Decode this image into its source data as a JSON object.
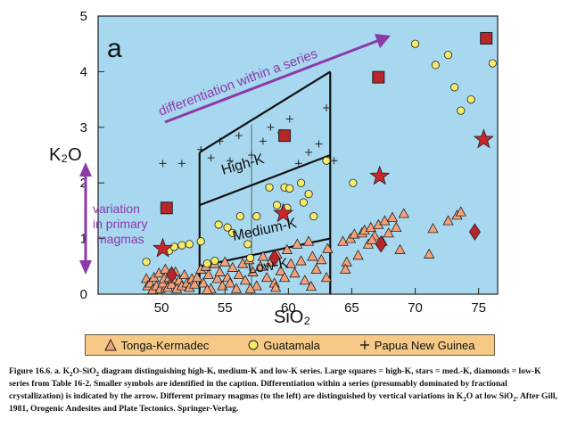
{
  "chart_data": {
    "type": "scatter",
    "panel_label": "a",
    "xlabel": "SiO₂",
    "ylabel": "K₂O",
    "xlim": [
      45,
      76.5
    ],
    "ylim": [
      0,
      5
    ],
    "x_ticks": [
      50,
      55,
      60,
      65,
      70,
      75
    ],
    "y_ticks": [
      0,
      1,
      2,
      3,
      4,
      5
    ],
    "background_color": "#a8d8f0",
    "annotations": {
      "differentiation": "differentiation within a series",
      "variation_lines": [
        "variation",
        "in primary",
        "magmas"
      ],
      "high_k": "High-K",
      "medium_k": "Medium-K",
      "low_k": "Low-K"
    },
    "fields": {
      "left_x": 53,
      "right_x": 63.3,
      "low_med_boundary": [
        [
          53,
          0.5
        ],
        [
          63.3,
          1.0
        ]
      ],
      "med_high_boundary": [
        [
          53,
          1.6
        ],
        [
          63.3,
          2.5
        ]
      ],
      "high_top_boundary": [
        [
          53,
          2.55
        ],
        [
          63.3,
          4.0
        ]
      ]
    },
    "series": [
      {
        "name": "Tonga-Kermadec",
        "marker": "triangle",
        "color": "#f4a178",
        "points": [
          [
            48.8,
            0.28
          ],
          [
            48.9,
            0.15
          ],
          [
            49.1,
            0.2
          ],
          [
            49.3,
            0.08
          ],
          [
            49.4,
            0.3
          ],
          [
            49.6,
            0.15
          ],
          [
            49.8,
            0.38
          ],
          [
            49.9,
            0.1
          ],
          [
            50.1,
            0.2
          ],
          [
            50.2,
            0.28
          ],
          [
            50.3,
            0.45
          ],
          [
            50.5,
            0.12
          ],
          [
            50.6,
            0.3
          ],
          [
            50.8,
            0.18
          ],
          [
            50.9,
            0.28
          ],
          [
            51.1,
            0.4
          ],
          [
            51.2,
            0.1
          ],
          [
            51.4,
            0.25
          ],
          [
            51.6,
            0.15
          ],
          [
            51.8,
            0.35
          ],
          [
            52.0,
            0.2
          ],
          [
            52.2,
            0.12
          ],
          [
            52.4,
            0.28
          ],
          [
            52.6,
            0.18
          ],
          [
            52.8,
            0.3
          ],
          [
            53.1,
            0.45
          ],
          [
            53.3,
            0.2
          ],
          [
            53.5,
            0.5
          ],
          [
            53.7,
            0.35
          ],
          [
            53.9,
            0.1
          ],
          [
            54.2,
            0.55
          ],
          [
            54.4,
            0.28
          ],
          [
            54.6,
            0.4
          ],
          [
            54.8,
            0.15
          ],
          [
            55.0,
            0.58
          ],
          [
            55.2,
            0.3
          ],
          [
            55.4,
            0.2
          ],
          [
            55.6,
            0.48
          ],
          [
            55.9,
            0.1
          ],
          [
            56.1,
            0.35
          ],
          [
            56.4,
            0.55
          ],
          [
            56.6,
            0.25
          ],
          [
            56.9,
            0.62
          ],
          [
            57.2,
            0.4
          ],
          [
            57.5,
            0.15
          ],
          [
            57.8,
            0.5
          ],
          [
            58.0,
            0.68
          ],
          [
            58.3,
            0.3
          ],
          [
            58.6,
            0.58
          ],
          [
            58.9,
            0.2
          ],
          [
            59.1,
            0.72
          ],
          [
            59.4,
            0.42
          ],
          [
            59.7,
            0.3
          ],
          [
            59.9,
            0.8
          ],
          [
            60.2,
            0.55
          ],
          [
            60.5,
            0.38
          ],
          [
            60.7,
            0.9
          ],
          [
            61.0,
            0.6
          ],
          [
            61.3,
            0.25
          ],
          [
            61.6,
            0.95
          ],
          [
            61.9,
            0.68
          ],
          [
            62.2,
            0.45
          ],
          [
            62.6,
            0.62
          ],
          [
            63.0,
            0.3
          ],
          [
            63.1,
            0.82
          ],
          [
            64.3,
            0.95
          ],
          [
            64.6,
            0.58
          ],
          [
            64.9,
            1.0
          ],
          [
            65.2,
            1.08
          ],
          [
            65.5,
            0.7
          ],
          [
            65.8,
            1.1
          ],
          [
            66.0,
            1.15
          ],
          [
            66.3,
            0.9
          ],
          [
            66.5,
            1.2
          ],
          [
            66.8,
            1.05
          ],
          [
            67.1,
            1.25
          ],
          [
            67.4,
            0.95
          ],
          [
            67.6,
            1.32
          ],
          [
            67.9,
            1.1
          ],
          [
            68.2,
            1.38
          ],
          [
            68.5,
            1.2
          ],
          [
            68.8,
            0.8
          ],
          [
            69.1,
            1.45
          ],
          [
            71.1,
            0.72
          ],
          [
            71.4,
            1.18
          ],
          [
            72.6,
            1.32
          ],
          [
            73.3,
            1.42
          ],
          [
            73.6,
            1.48
          ],
          [
            53.6,
            0.08
          ],
          [
            57.0,
            0.1
          ],
          [
            59.0,
            0.12
          ],
          [
            61.8,
            0.14
          ],
          [
            64.5,
            0.45
          ],
          [
            66.6,
            0.98
          ]
        ]
      },
      {
        "name": "Guatamala",
        "marker": "circle",
        "color": "#f6ec6a",
        "points": [
          [
            48.8,
            0.58
          ],
          [
            50.6,
            0.78
          ],
          [
            51.0,
            0.85
          ],
          [
            51.6,
            0.88
          ],
          [
            52.2,
            0.9
          ],
          [
            53.1,
            0.95
          ],
          [
            53.6,
            0.55
          ],
          [
            54.2,
            0.6
          ],
          [
            54.5,
            1.25
          ],
          [
            55.2,
            1.2
          ],
          [
            55.6,
            1.1
          ],
          [
            56.2,
            1.4
          ],
          [
            56.8,
            0.9
          ],
          [
            57.0,
            0.65
          ],
          [
            57.5,
            1.4
          ],
          [
            58.5,
            1.92
          ],
          [
            59.1,
            1.6
          ],
          [
            59.7,
            1.92
          ],
          [
            59.9,
            1.55
          ],
          [
            60.1,
            1.9
          ],
          [
            61.0,
            2.0
          ],
          [
            61.2,
            1.65
          ],
          [
            61.6,
            1.8
          ],
          [
            62.0,
            1.4
          ],
          [
            63.0,
            2.4
          ],
          [
            65.1,
            2.0
          ],
          [
            70.0,
            4.5
          ],
          [
            71.6,
            4.12
          ],
          [
            72.6,
            4.3
          ],
          [
            73.1,
            3.72
          ],
          [
            73.6,
            3.3
          ],
          [
            74.4,
            3.5
          ],
          [
            76.1,
            4.15
          ]
        ]
      },
      {
        "name": "Papua New Guinea",
        "marker": "plus",
        "color": "#222222",
        "points": [
          [
            50.1,
            2.35
          ],
          [
            51.6,
            2.35
          ],
          [
            53.1,
            2.6
          ],
          [
            53.9,
            2.45
          ],
          [
            54.6,
            2.75
          ],
          [
            55.4,
            2.4
          ],
          [
            56.1,
            2.85
          ],
          [
            57.1,
            2.5
          ],
          [
            58.0,
            2.75
          ],
          [
            58.6,
            3.0
          ],
          [
            59.4,
            2.9
          ],
          [
            60.1,
            3.15
          ],
          [
            60.8,
            2.35
          ],
          [
            61.6,
            2.55
          ],
          [
            62.4,
            2.7
          ],
          [
            63.0,
            3.35
          ],
          [
            63.6,
            2.4
          ]
        ]
      },
      {
        "name": "high-K series",
        "marker": "square",
        "color": "#b8252b",
        "points": [
          [
            50.4,
            1.55
          ],
          [
            59.7,
            2.85
          ],
          [
            67.1,
            3.9
          ],
          [
            75.6,
            4.6
          ]
        ]
      },
      {
        "name": "med.-K series",
        "marker": "star",
        "color": "#c9262c",
        "points": [
          [
            50.1,
            0.82
          ],
          [
            59.6,
            1.45
          ],
          [
            67.2,
            2.12
          ],
          [
            75.4,
            2.78
          ]
        ]
      },
      {
        "name": "low-K series",
        "marker": "diamond",
        "color": "#b8252b",
        "points": [
          [
            50.8,
            0.35
          ],
          [
            58.9,
            0.65
          ],
          [
            67.3,
            0.9
          ],
          [
            74.7,
            1.12
          ]
        ]
      }
    ]
  },
  "legend": {
    "tonga_label": "Tonga-Kermadec",
    "guatamala_label": "Guatamala",
    "png_label": "Papua New Guinea"
  },
  "caption": {
    "t1": "Figure 16.6. a. K",
    "t2": "O-SiO",
    "t3": " diagram distinguishing high-K, medium-K and low-K series. Large squares = high-K, stars = med.-K, diamonds = low-K series from Table 16-2. Smaller symbols are identified in the caption. Differentiation within a series (presumably dominated by fractional crystallization) is indicated by the arrow. Different primary magmas (to the left) are distinguished by vertical variations in K",
    "t4": "O at low SiO",
    "t5": ". After Gill, 1981, Orogenic Andesites and Plate Tectonics. Springer-Verlag.",
    "sub2": "2"
  }
}
